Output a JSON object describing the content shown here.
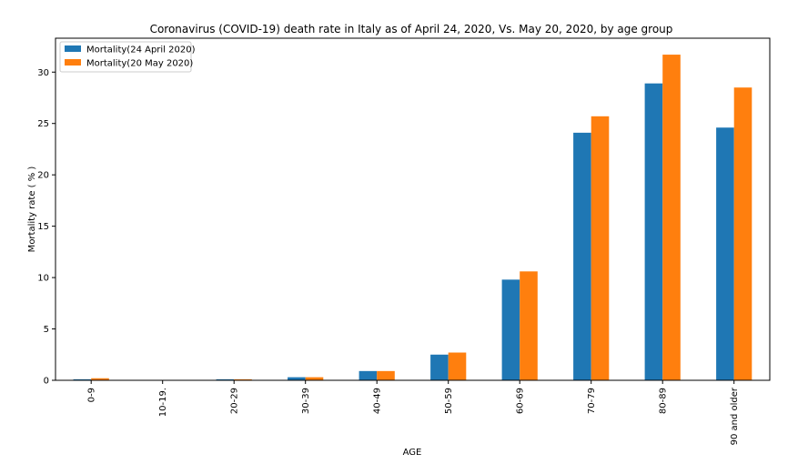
{
  "chart_data": {
    "type": "bar",
    "title": "Coronavirus (COVID-19) death rate in Italy as of April 24, 2020,  Vs.  May 20, 2020, by age group",
    "xlabel": "AGE",
    "ylabel": "Mortality rate ( % )",
    "categories": [
      "0-9",
      "10-19.",
      "20-29",
      "30-39",
      "40-49",
      "50-59",
      "60-69",
      "70-79",
      "80-89",
      "90 and older"
    ],
    "series": [
      {
        "name": "Mortality(24 April 2020)",
        "color": "#1f77b4",
        "values": [
          0.1,
          0.0,
          0.1,
          0.3,
          0.9,
          2.5,
          9.8,
          24.1,
          28.9,
          24.6
        ]
      },
      {
        "name": "Mortality(20 May 2020)",
        "color": "#ff7f0e",
        "values": [
          0.2,
          0.0,
          0.1,
          0.3,
          0.9,
          2.7,
          10.6,
          25.7,
          31.7,
          28.5
        ]
      }
    ],
    "ylim": [
      0,
      33.3
    ],
    "yticks": [
      "0",
      "5",
      "10",
      "15",
      "20",
      "25",
      "30"
    ],
    "grid": false,
    "legend_position": "top-left"
  }
}
